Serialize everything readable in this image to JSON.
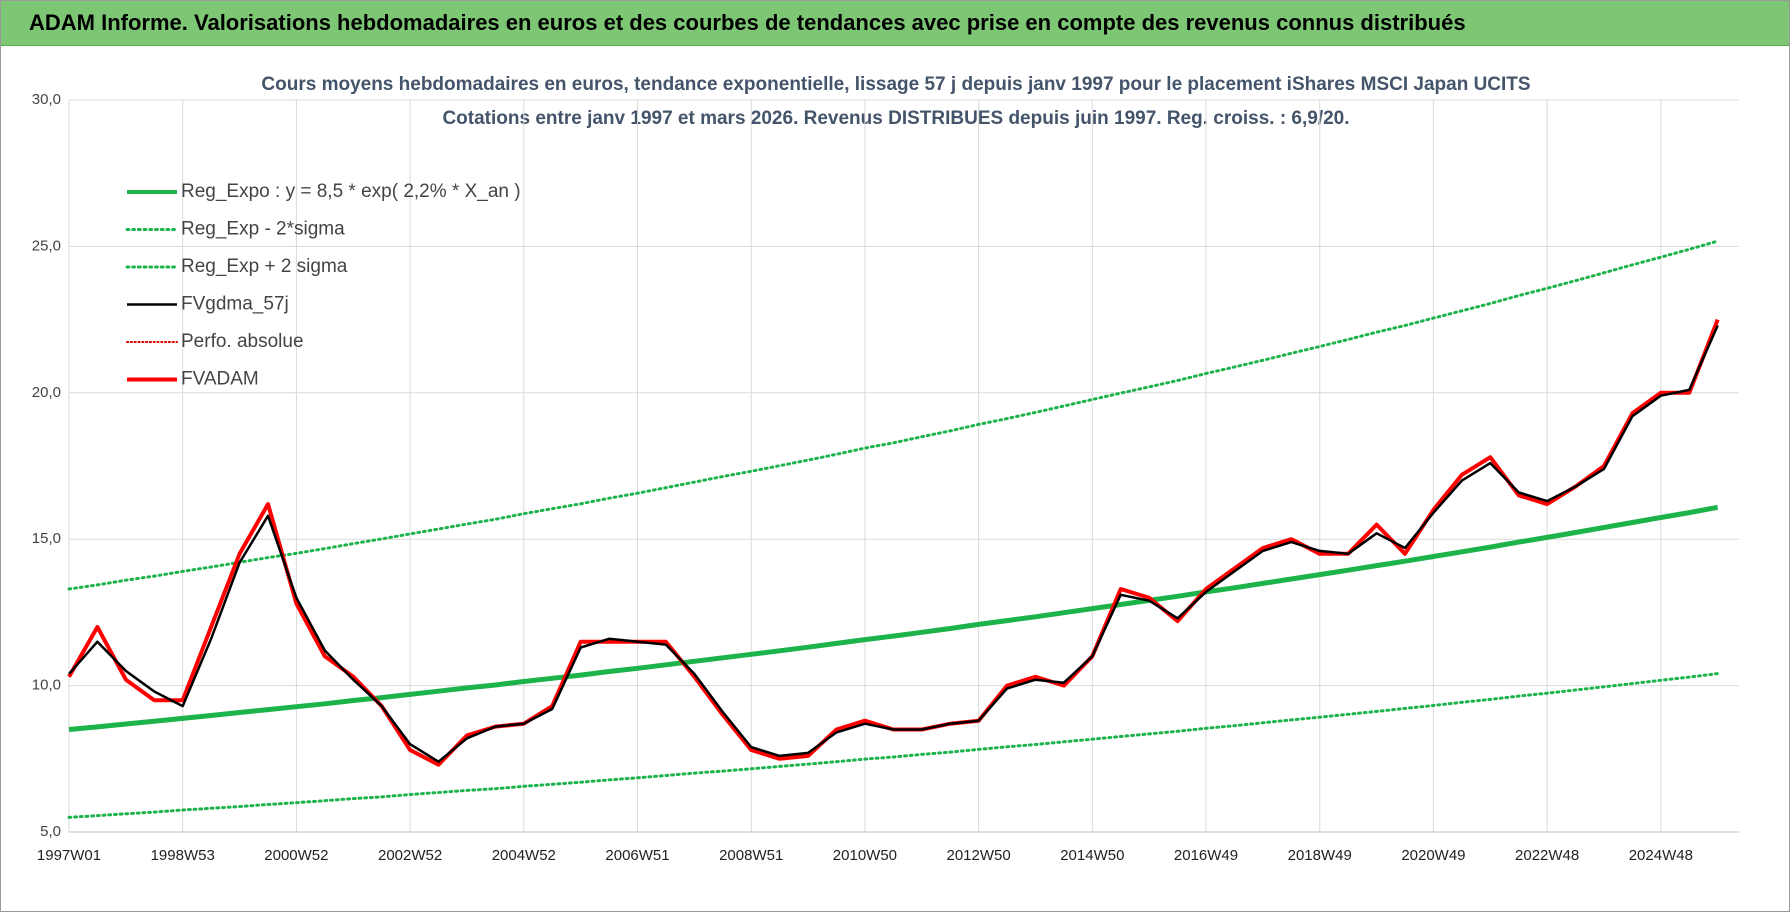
{
  "header": {
    "title": "ADAM Informe. Valorisations hebdomadaires en euros et des courbes de tendances avec prise en compte des revenus connus distribués"
  },
  "chart_data": {
    "type": "line",
    "title": "Cours moyens hebdomadaires en euros, tendance exponentielle, lissage 57 j depuis janv 1997 pour le placement iShares MSCI Japan UCITS",
    "subtitle": "Cotations entre janv 1997 et mars 2026. Revenus DISTRIBUES depuis juin 1997. Reg. croiss. : 6,9/20.",
    "categories": [
      "1997W01",
      null,
      null,
      null,
      "1998W53",
      null,
      null,
      null,
      "2000W52",
      null,
      null,
      null,
      "2002W52",
      null,
      null,
      null,
      "2004W52",
      null,
      null,
      null,
      "2006W51",
      null,
      null,
      null,
      "2008W51",
      null,
      null,
      null,
      "2010W50",
      null,
      null,
      null,
      "2012W50",
      null,
      null,
      null,
      "2014W50",
      null,
      null,
      null,
      "2016W49",
      null,
      null,
      null,
      "2018W49",
      null,
      null,
      null,
      "2020W49",
      null,
      null,
      null,
      "2022W48",
      null,
      null,
      null,
      "2024W48",
      null,
      null
    ],
    "ylim": [
      5,
      30
    ],
    "yticks": [
      {
        "value": 5,
        "label": "5,0"
      },
      {
        "value": 10,
        "label": "10,0"
      },
      {
        "value": 15,
        "label": "15,0"
      },
      {
        "value": 20,
        "label": "20,0"
      },
      {
        "value": 25,
        "label": "25,0"
      },
      {
        "value": 30,
        "label": "30,0"
      }
    ],
    "grid": true,
    "legend": "upper left",
    "series": [
      {
        "name": "Reg_Expo : y = 8,5 * exp( 2,2% *  X_an )",
        "color": "#1db34b",
        "line_style": "solid",
        "line_width": 5,
        "values": [
          8.5,
          8.59,
          8.69,
          8.78,
          8.88,
          8.98,
          9.08,
          9.18,
          9.28,
          9.38,
          9.49,
          9.59,
          9.7,
          9.81,
          9.92,
          10.02,
          10.14,
          10.25,
          10.36,
          10.48,
          10.59,
          10.71,
          10.83,
          10.95,
          11.07,
          11.19,
          11.31,
          11.44,
          11.57,
          11.69,
          11.82,
          11.95,
          12.09,
          12.22,
          12.35,
          12.49,
          12.63,
          12.77,
          12.91,
          13.05,
          13.2,
          13.34,
          13.49,
          13.64,
          13.79,
          13.94,
          14.1,
          14.25,
          14.41,
          14.57,
          14.73,
          14.9,
          15.06,
          15.23,
          15.4,
          15.57,
          15.74,
          15.91,
          16.09
        ]
      },
      {
        "name": "Reg_Exp - 2*sigma",
        "color": "#1db34b",
        "line_style": "dotted",
        "line_width": 3,
        "values": [
          5.5,
          5.56,
          5.62,
          5.68,
          5.75,
          5.81,
          5.87,
          5.94,
          6.0,
          6.07,
          6.14,
          6.2,
          6.28,
          6.35,
          6.42,
          6.48,
          6.56,
          6.63,
          6.7,
          6.78,
          6.85,
          6.93,
          7.01,
          7.08,
          7.16,
          7.24,
          7.32,
          7.4,
          7.49,
          7.56,
          7.65,
          7.73,
          7.82,
          7.91,
          7.99,
          8.08,
          8.17,
          8.26,
          8.35,
          8.44,
          8.54,
          8.63,
          8.73,
          8.83,
          8.92,
          9.02,
          9.12,
          9.22,
          9.32,
          9.43,
          9.53,
          9.64,
          9.74,
          9.85,
          9.96,
          10.07,
          10.18,
          10.29,
          10.41
        ]
      },
      {
        "name": "Reg_Exp + 2 sigma",
        "color": "#1db34b",
        "line_style": "dotted",
        "line_width": 3,
        "values": [
          13.3,
          13.44,
          13.6,
          13.74,
          13.9,
          14.05,
          14.21,
          14.37,
          14.52,
          14.68,
          14.85,
          15.01,
          15.18,
          15.35,
          15.52,
          15.68,
          15.87,
          16.04,
          16.21,
          16.4,
          16.57,
          16.76,
          16.95,
          17.14,
          17.32,
          17.51,
          17.7,
          17.9,
          18.11,
          18.29,
          18.5,
          18.7,
          18.92,
          19.12,
          19.33,
          19.55,
          19.77,
          19.99,
          20.2,
          20.42,
          20.66,
          20.88,
          21.11,
          21.35,
          21.58,
          21.82,
          22.07,
          22.3,
          22.55,
          22.8,
          23.05,
          23.32,
          23.57,
          23.83,
          24.1,
          24.37,
          24.63,
          24.9,
          25.18
        ]
      },
      {
        "name": "FVgdma_57j",
        "color": "#000000",
        "line_style": "solid",
        "line_width": 2.5,
        "values": [
          10.4,
          11.5,
          10.5,
          9.8,
          9.3,
          11.6,
          14.2,
          15.8,
          13.0,
          11.2,
          10.2,
          9.3,
          8.0,
          7.4,
          8.2,
          8.6,
          8.7,
          9.2,
          11.3,
          11.6,
          11.5,
          11.4,
          10.4,
          9.1,
          7.9,
          7.6,
          7.7,
          8.4,
          8.7,
          8.5,
          8.5,
          8.7,
          8.8,
          9.9,
          10.2,
          10.1,
          11.0,
          13.1,
          12.9,
          12.3,
          13.2,
          13.9,
          14.6,
          14.9,
          14.6,
          14.5,
          15.2,
          14.7,
          15.9,
          17.0,
          17.6,
          16.6,
          16.3,
          16.8,
          17.4,
          19.2,
          19.9,
          20.1,
          22.3
        ]
      },
      {
        "name": "Perfo. absolue",
        "color": "#e00000",
        "line_style": "dotted",
        "line_width": 2,
        "values": [
          null,
          null,
          null,
          null,
          null,
          null,
          null,
          null,
          null,
          null,
          null,
          null,
          null,
          null,
          null,
          null,
          null,
          null,
          null,
          null,
          null,
          null,
          null,
          null,
          null,
          null,
          null,
          null,
          null,
          null,
          null,
          null,
          null,
          null,
          null,
          null,
          null,
          null,
          null,
          null,
          null,
          null,
          null,
          null,
          null,
          null,
          null,
          null,
          null,
          null,
          null,
          null,
          null,
          null,
          null,
          null,
          null,
          null,
          null
        ]
      },
      {
        "name": "FVADAM",
        "color": "#ff0000",
        "line_style": "solid",
        "line_width": 4,
        "values": [
          10.3,
          12.0,
          10.2,
          9.5,
          9.5,
          12.0,
          14.5,
          16.2,
          12.8,
          11.0,
          10.3,
          9.3,
          7.8,
          7.3,
          8.3,
          8.6,
          8.7,
          9.3,
          11.5,
          11.5,
          11.5,
          11.5,
          10.3,
          9.0,
          7.8,
          7.5,
          7.6,
          8.5,
          8.8,
          8.5,
          8.5,
          8.7,
          8.8,
          10.0,
          10.3,
          10.0,
          11.0,
          13.3,
          13.0,
          12.2,
          13.3,
          14.0,
          14.7,
          15.0,
          14.5,
          14.5,
          15.5,
          14.5,
          16.0,
          17.2,
          17.8,
          16.5,
          16.2,
          16.8,
          17.5,
          19.3,
          20.0,
          20.0,
          22.5
        ]
      }
    ]
  }
}
